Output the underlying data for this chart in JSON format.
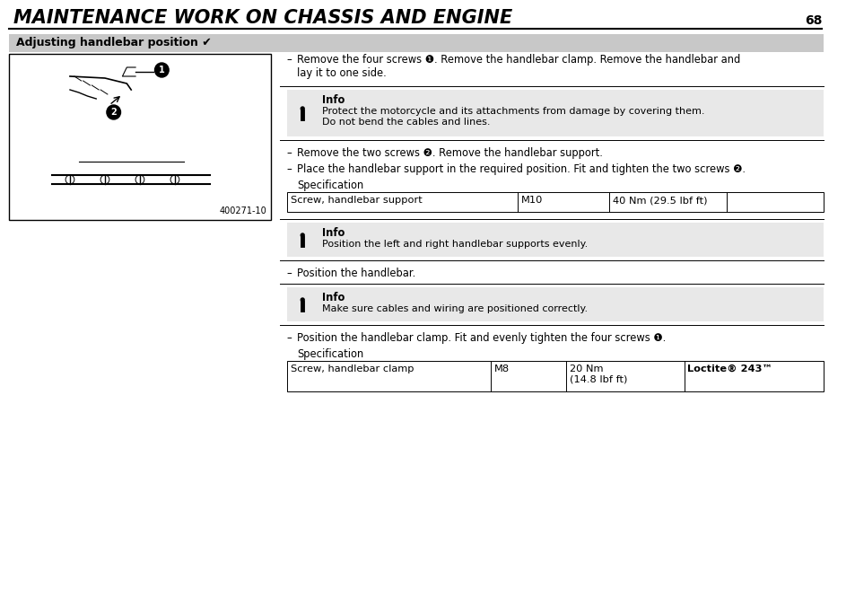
{
  "title": "MAINTENANCE WORK ON CHASSIS AND ENGINE",
  "page_number": "68",
  "section_title": "Adjusting handlebar position ✓",
  "image_code": "400271-10",
  "bg_color": "#ffffff",
  "section_bg": "#c8c8c8",
  "bullet_points": [
    "Remove the four screws ❶. Remove the handlebar clamp. Remove the handlebar and\nlay it to one side.",
    "Remove the two screws ❷. Remove the handlebar support.",
    "Place the handlebar support in the required position. Fit and tighten the two screws ❷.",
    "Position the handlebar.",
    "Position the handlebar clamp. Fit and evenly tighten the four screws ❶."
  ],
  "info_boxes": [
    {
      "title": "Info",
      "text": "Protect the motorcycle and its attachments from damage by covering them.\nDo not bend the cables and lines."
    },
    {
      "title": "Info",
      "text": "Position the left and right handlebar supports evenly."
    },
    {
      "title": "Info",
      "text": "Make sure cables and wiring are positioned correctly."
    }
  ],
  "spec_tables": [
    {
      "label": "Specification",
      "rows": [
        [
          "Screw, handlebar support",
          "M10",
          "40 Nm (29.5 lbf ft)",
          ""
        ]
      ],
      "has_bold_last": false
    },
    {
      "label": "Specification",
      "rows": [
        [
          "Screw, handlebar clamp",
          "M8",
          "20 Nm\n(14.8 lbf ft)",
          "Loctite® 243™"
        ]
      ],
      "has_bold_last": true
    }
  ]
}
